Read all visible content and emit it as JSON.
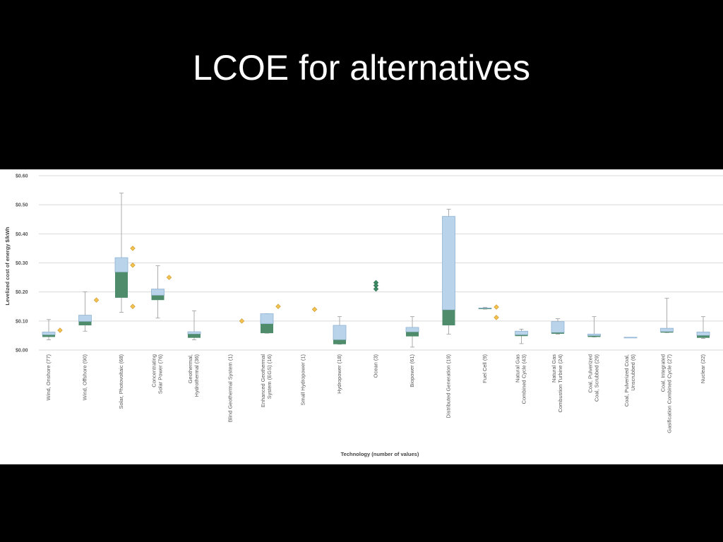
{
  "slide": {
    "title": "LCOE for alternatives"
  },
  "colors": {
    "background": "#000000",
    "title_text": "#ffffff",
    "panel": "#ffffff",
    "grid": "#d9d9d9",
    "box_upper": "#b9d3ea",
    "box_upper_stroke": "#8fb3d4",
    "box_lower": "#4f8c6c",
    "whisker": "#999999",
    "outlier_diamond": "#f2c14e",
    "outlier_diamond_stroke": "#c9962a",
    "ocean_diamond": "#3d8c66"
  },
  "chart_data": {
    "type": "boxplot",
    "title": "",
    "xlabel": "Technology (number of values)",
    "ylabel": "Levelized cost of energy $/kWh",
    "ylim": [
      0,
      0.6
    ],
    "yticks": [
      0.0,
      0.1,
      0.2,
      0.3,
      0.4,
      0.5,
      0.6
    ],
    "ytick_labels": [
      "$0.00",
      "$0.10",
      "$0.20",
      "$0.30",
      "$0.40",
      "$0.50",
      "$0.60"
    ],
    "grid": true,
    "categories": [
      {
        "label": "Wind, Onshore (77)",
        "min": 0.035,
        "q1": 0.045,
        "median": 0.052,
        "q3": 0.062,
        "max": 0.105,
        "outliers": [
          0.068
        ],
        "outlier_color": "yellow"
      },
      {
        "label": "Wind, Offshore (90)",
        "min": 0.065,
        "q1": 0.085,
        "median": 0.098,
        "q3": 0.12,
        "max": 0.2,
        "outliers": [
          0.172
        ],
        "outlier_color": "yellow"
      },
      {
        "label": "Solar, Photovoltaic (68)",
        "min": 0.13,
        "q1": 0.18,
        "median": 0.268,
        "q3": 0.318,
        "max": 0.54,
        "outliers": [
          0.35,
          0.292,
          0.15
        ],
        "outlier_color": "yellow"
      },
      {
        "label": "Concentrating Solar Power (76)",
        "min": 0.11,
        "q1": 0.172,
        "median": 0.188,
        "q3": 0.21,
        "max": 0.29,
        "outliers": [
          0.25
        ],
        "outlier_color": "yellow"
      },
      {
        "label": "Geothermal, Hydrothermal (36)",
        "min": 0.035,
        "q1": 0.042,
        "median": 0.055,
        "q3": 0.063,
        "max": 0.135,
        "outliers": [],
        "outlier_color": "yellow"
      },
      {
        "label": "Blind Geothermal System (1)",
        "min": null,
        "q1": null,
        "median": null,
        "q3": null,
        "max": null,
        "outliers": [
          0.1
        ],
        "outlier_color": "yellow"
      },
      {
        "label": "Enhanced Geothermal System (EGS) (16)",
        "min": 0.058,
        "q1": 0.058,
        "median": 0.09,
        "q3": 0.125,
        "max": 0.125,
        "outliers": [
          0.15
        ],
        "outlier_color": "yellow"
      },
      {
        "label": "Small Hydropower (1)",
        "min": null,
        "q1": null,
        "median": null,
        "q3": null,
        "max": null,
        "outliers": [
          0.14
        ],
        "outlier_color": "yellow"
      },
      {
        "label": "Hydropower (18)",
        "min": 0.02,
        "q1": 0.02,
        "median": 0.035,
        "q3": 0.085,
        "max": 0.115,
        "outliers": [],
        "outlier_color": "yellow"
      },
      {
        "label": "Ocean (3)",
        "min": null,
        "q1": null,
        "median": null,
        "q3": null,
        "max": null,
        "outliers": [
          0.232,
          0.222,
          0.21
        ],
        "outlier_color": "green"
      },
      {
        "label": "Biopower (61)",
        "min": 0.01,
        "q1": 0.047,
        "median": 0.062,
        "q3": 0.078,
        "max": 0.115,
        "outliers": [],
        "outlier_color": "yellow"
      },
      {
        "label": "Distributed Generation (19)",
        "min": 0.055,
        "q1": 0.085,
        "median": 0.138,
        "q3": 0.46,
        "max": 0.485,
        "outliers": [],
        "outlier_color": "yellow"
      },
      {
        "label": "Fuel Cell (9)",
        "min": 0.141,
        "q1": 0.141,
        "median": 0.143,
        "q3": 0.145,
        "max": 0.147,
        "outliers": [
          0.148,
          0.112
        ],
        "outlier_color": "yellow"
      },
      {
        "label": "Natural Gas Combined Cycle (43)",
        "min": 0.022,
        "q1": 0.048,
        "median": 0.052,
        "q3": 0.065,
        "max": 0.072,
        "outliers": [],
        "outlier_color": "yellow"
      },
      {
        "label": "Natural Gas Combustion Turbine (24)",
        "min": 0.055,
        "q1": 0.056,
        "median": 0.06,
        "q3": 0.098,
        "max": 0.108,
        "outliers": [],
        "outlier_color": "yellow"
      },
      {
        "label": "Coal, Pulverized Coal, Scrubbed (29)",
        "min": 0.045,
        "q1": 0.045,
        "median": 0.049,
        "q3": 0.055,
        "max": 0.115,
        "outliers": [],
        "outlier_color": "yellow"
      },
      {
        "label": "Coal, Pulverized Coal, Unscrubbed (6)",
        "min": 0.043,
        "q1": 0.043,
        "median": 0.043,
        "q3": 0.044,
        "max": 0.044,
        "outliers": [],
        "outlier_color": "yellow"
      },
      {
        "label": "Coal, Integrated Gasification Combined Cycle (27)",
        "min": 0.06,
        "q1": 0.06,
        "median": 0.063,
        "q3": 0.075,
        "max": 0.178,
        "outliers": [],
        "outlier_color": "yellow"
      },
      {
        "label": "Nuclear (22)",
        "min": 0.04,
        "q1": 0.042,
        "median": 0.05,
        "q3": 0.062,
        "max": 0.115,
        "outliers": [],
        "outlier_color": "yellow"
      }
    ]
  }
}
